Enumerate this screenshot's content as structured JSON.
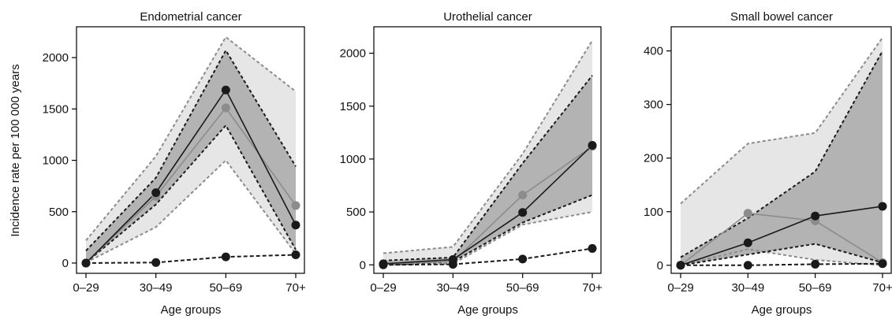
{
  "figure": {
    "ylabel": "Incidence rate per 100 000 years",
    "colors": {
      "outer_band": "#e6e6e6",
      "inner_band": "#b3b3b3",
      "outer_border": "#8c8c8c",
      "inner_border": "#1a1a1a",
      "grey_series": "#8c8c8c",
      "black_series": "#1a1a1a",
      "frame": "#000000"
    }
  },
  "chart_data": [
    {
      "type": "line",
      "title": "Endometrial cancer",
      "xlabel": "Age groups",
      "ylabel": "Incidence rate per 100 000 years",
      "categories": [
        "0–29",
        "30–49",
        "50–69",
        "70+"
      ],
      "ylim": [
        -100,
        2300
      ],
      "yticks": [
        0,
        500,
        1000,
        1500,
        2000
      ],
      "series": [
        {
          "role": "grey_solid",
          "values": [
            0,
            650,
            1510,
            560
          ],
          "band": {
            "lower": [
              5,
              350,
              1000,
              90
            ],
            "upper": [
              220,
              1040,
              2200,
              1670
            ]
          }
        },
        {
          "role": "black_solid",
          "values": [
            0,
            685,
            1685,
            370
          ],
          "band": {
            "lower": [
              5,
              570,
              1340,
              130
            ],
            "upper": [
              120,
              830,
              2070,
              940
            ]
          }
        },
        {
          "role": "black_dashed",
          "values": [
            0,
            5,
            60,
            80
          ]
        }
      ]
    },
    {
      "type": "line",
      "title": "Urothelial cancer",
      "xlabel": "Age groups",
      "ylabel": "",
      "categories": [
        "0–29",
        "30–49",
        "50–69",
        "70+"
      ],
      "ylim": [
        -80,
        2250
      ],
      "yticks": [
        0,
        500,
        1000,
        1500,
        2000
      ],
      "series": [
        {
          "role": "grey_solid",
          "values": [
            5,
            30,
            660,
            1120
          ],
          "band": {
            "lower": [
              0,
              10,
              380,
              500
            ],
            "upper": [
              110,
              170,
              1050,
              2120
            ]
          }
        },
        {
          "role": "black_solid",
          "values": [
            10,
            50,
            495,
            1130
          ],
          "band": {
            "lower": [
              0,
              30,
              400,
              660
            ],
            "upper": [
              40,
              70,
              960,
              1790
            ]
          }
        },
        {
          "role": "black_dashed",
          "values": [
            0,
            5,
            55,
            155
          ]
        }
      ]
    },
    {
      "type": "line",
      "title": "Small bowel cancer",
      "xlabel": "Age groups",
      "ylabel": "",
      "categories": [
        "0–29",
        "30–49",
        "50–69",
        "70+"
      ],
      "ylim": [
        -15,
        445
      ],
      "yticks": [
        0,
        100,
        200,
        300,
        400
      ],
      "series": [
        {
          "role": "grey_solid",
          "values": [
            0,
            97,
            83,
            5
          ],
          "band": {
            "lower": [
              0,
              30,
              10,
              0
            ],
            "upper": [
              115,
              227,
              247,
              425
            ]
          }
        },
        {
          "role": "black_solid",
          "values": [
            0,
            42,
            92,
            110
          ],
          "band": {
            "lower": [
              0,
              20,
              40,
              5
            ],
            "upper": [
              15,
              88,
              175,
              400
            ]
          }
        },
        {
          "role": "black_dashed",
          "values": [
            0,
            0,
            2,
            3
          ]
        }
      ]
    }
  ]
}
